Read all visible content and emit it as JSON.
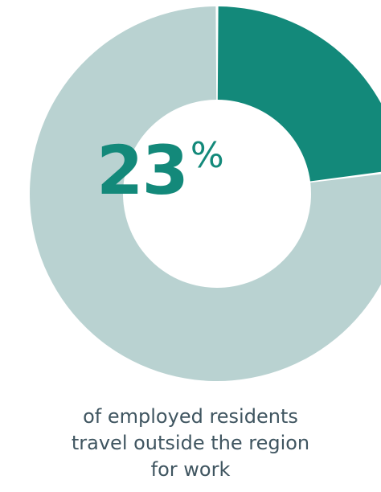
{
  "chart_data": {
    "type": "pie",
    "variant": "donut",
    "slices": [
      {
        "label": "travel outside the region",
        "value": 23,
        "color": "#13897a"
      },
      {
        "label": "",
        "value": 77,
        "color": "#b9d2d1"
      }
    ]
  },
  "headline": {
    "number": "23",
    "unit": "%"
  },
  "caption": {
    "line1": "of employed residents",
    "line2": "travel outside the region",
    "line3": "for work"
  },
  "colors": {
    "accent": "#13897a",
    "remainder": "#b9d2d1",
    "caption_text": "#3f5560"
  }
}
